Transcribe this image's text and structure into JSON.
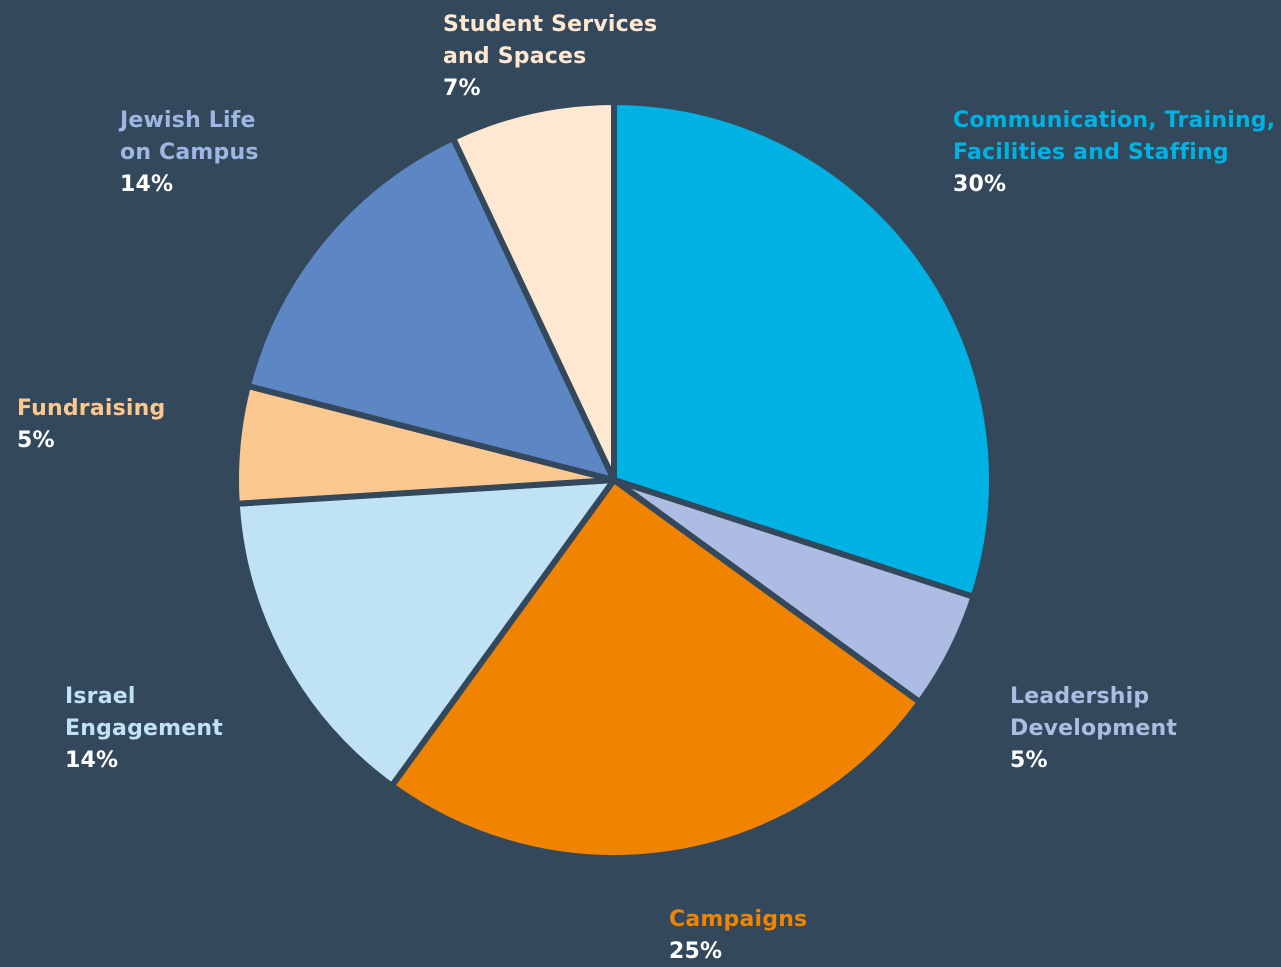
{
  "chart_data": {
    "type": "pie",
    "title": "",
    "slices": [
      {
        "key": "communication",
        "label": "Communication, Training,\nFacilities and Staffing",
        "pct_label": "30%",
        "value": 30,
        "color": "#00b2e3"
      },
      {
        "key": "leadership",
        "label": "Leadership\nDevelopment",
        "pct_label": "5%",
        "value": 5,
        "color": "#acbce3"
      },
      {
        "key": "campaigns",
        "label": "Campaigns",
        "pct_label": "25%",
        "value": 25,
        "color": "#f08300"
      },
      {
        "key": "israel",
        "label": "Israel\nEngagement",
        "pct_label": "14%",
        "value": 14,
        "color": "#bfe3f5"
      },
      {
        "key": "fundraising",
        "label": "Fundraising",
        "pct_label": "5%",
        "value": 5,
        "color": "#fbc88f"
      },
      {
        "key": "jewish",
        "label": "Jewish Life\non Campus",
        "pct_label": "14%",
        "value": 14,
        "color": "#5d87c4"
      },
      {
        "key": "student",
        "label": "Student Services\nand Spaces",
        "pct_label": "7%",
        "value": 7,
        "color": "#ffe8d2"
      }
    ],
    "label_colors": {
      "communication": "#00b2e3",
      "leadership": "#acbce3",
      "campaigns": "#f08300",
      "israel": "#bfe3f5",
      "fundraising": "#fbc88f",
      "jewish": "#9db6e3",
      "student": "#ffe8d2"
    },
    "background": "#34485c",
    "separator_color": "#34485c"
  }
}
